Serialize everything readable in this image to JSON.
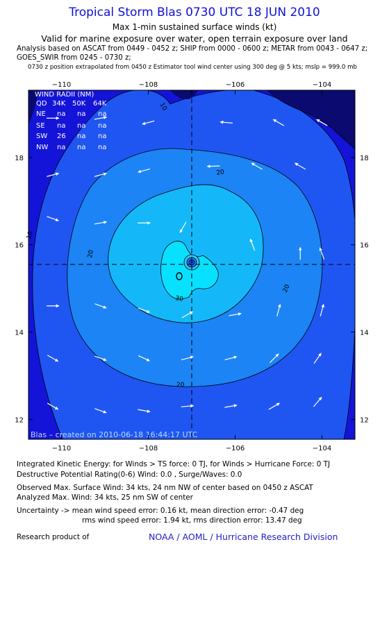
{
  "header": {
    "title": "Tropical Storm Blas 0730 UTC 18 JUN 2010",
    "subtitle": "Max 1-min sustained surface winds (kt)",
    "validity": "Valid for marine exposure over water, open terrain exposure over land",
    "analysis_line1": "Analysis based on  ASCAT from 0449 - 0452 z;  SHIP from 0000 - 0600 z;  METAR from 0043 - 0647 z;",
    "analysis_line2": "GOES_SWIR from 0245 - 0730 z;",
    "analysis_line3": "0730 z position extrapolated from 0450 z Estimator tool wind center using 300 deg @ 5 kts; mslp = 999.0 mb"
  },
  "wind_radii": {
    "title": "WIND RADII (NM)",
    "columns": [
      "QD",
      "34K",
      "50K",
      "64K"
    ],
    "rows": [
      [
        "NE",
        "na",
        "na",
        "na"
      ],
      [
        "SE",
        "na",
        "na",
        "na"
      ],
      [
        "SW",
        "26",
        "na",
        "na"
      ],
      [
        "NW",
        "na",
        "na",
        "na"
      ]
    ]
  },
  "credit": "Blas – created on 2010-06-18 16:44:17 UTC",
  "footer": {
    "ike": "Integrated Kinetic Energy:  for Winds > TS force: 0 TJ,  for Winds > Hurricane Force: 0 TJ",
    "dpr": "Destructive Potential Rating(0-6)   Wind: 0.0 , Surge/Waves: 0.0",
    "observed": "Observed Max. Surface Wind: 34 kts, 24 nm NW of center based on 0450 z ASCAT",
    "analyzed": "Analyzed Max. Wind: 34 kts, 25 nm SW of center",
    "uncertainty1": "Uncertainty -> mean wind speed error: 0.16 kt,   mean direction error:  -0.47 deg",
    "uncertainty2": "rms wind speed error: 1.94 kt,   rms direction error: 13.47 deg",
    "research": "Research product of",
    "org": "NOAA / AOML / Hurricane Research Division"
  },
  "colors": {
    "title": "#1010d8",
    "org": "#2020c8",
    "band_lt10": "#1414d8",
    "band_10_20": "#1f56f2",
    "band_20_25": "#1c84f4",
    "band_25_30": "#14b8f8",
    "band_30_35": "#08e0ff",
    "land": "#0a0a70"
  },
  "chart_data": {
    "type": "contour",
    "title": "Tropical Storm Blas 0730 UTC 18 JUN 2010",
    "variable": "Max 1-min sustained surface winds (kt)",
    "x_axis": {
      "ticks": [
        -110,
        -108,
        -106,
        -104
      ],
      "tick_labels": [
        "−110",
        "−108",
        "−106",
        "−104"
      ],
      "range": [
        -111,
        -103.8
      ]
    },
    "y_axis": {
      "ticks": [
        12,
        14,
        16,
        18
      ],
      "tick_labels": [
        "12",
        "14",
        "16",
        "18"
      ],
      "range": [
        11.6,
        19.6
      ]
    },
    "contour_levels": [
      10,
      20,
      30
    ],
    "contour_labels": [
      "10",
      "20",
      "30"
    ],
    "storm_center": {
      "lon": -107.0,
      "lat": 15.55
    },
    "max_wind_kt": 34,
    "wind_vectors": [
      {
        "lon": -110.2,
        "lat": 18.9,
        "dir": 90
      },
      {
        "lon": -109.1,
        "lat": 18.9,
        "dir": 80
      },
      {
        "lon": -108.0,
        "lat": 18.8,
        "dir": 255
      },
      {
        "lon": -106.2,
        "lat": 18.8,
        "dir": 275
      },
      {
        "lon": -105.0,
        "lat": 18.8,
        "dir": 300
      },
      {
        "lon": -104.0,
        "lat": 18.8,
        "dir": 300
      },
      {
        "lon": -110.2,
        "lat": 17.6,
        "dir": 75
      },
      {
        "lon": -109.1,
        "lat": 17.6,
        "dir": 75
      },
      {
        "lon": -108.1,
        "lat": 17.7,
        "dir": 255
      },
      {
        "lon": -106.5,
        "lat": 17.8,
        "dir": 268
      },
      {
        "lon": -105.5,
        "lat": 17.8,
        "dir": 300
      },
      {
        "lon": -104.5,
        "lat": 17.8,
        "dir": 300
      },
      {
        "lon": -110.2,
        "lat": 16.6,
        "dir": 110
      },
      {
        "lon": -109.1,
        "lat": 16.5,
        "dir": 80
      },
      {
        "lon": -108.1,
        "lat": 16.5,
        "dir": 90
      },
      {
        "lon": -107.2,
        "lat": 16.4,
        "dir": 210
      },
      {
        "lon": -105.6,
        "lat": 16.0,
        "dir": 340
      },
      {
        "lon": -104.5,
        "lat": 15.8,
        "dir": 0
      },
      {
        "lon": -104.0,
        "lat": 15.8,
        "dir": 340
      },
      {
        "lon": -110.2,
        "lat": 14.6,
        "dir": 90
      },
      {
        "lon": -109.1,
        "lat": 14.6,
        "dir": 110
      },
      {
        "lon": -108.1,
        "lat": 14.5,
        "dir": 110
      },
      {
        "lon": -107.1,
        "lat": 14.4,
        "dir": 60
      },
      {
        "lon": -106.0,
        "lat": 14.4,
        "dir": 80
      },
      {
        "lon": -105.0,
        "lat": 14.5,
        "dir": 15
      },
      {
        "lon": -104.0,
        "lat": 14.5,
        "dir": 15
      },
      {
        "lon": -110.2,
        "lat": 13.4,
        "dir": 120
      },
      {
        "lon": -109.1,
        "lat": 13.4,
        "dir": 110
      },
      {
        "lon": -108.1,
        "lat": 13.4,
        "dir": 115
      },
      {
        "lon": -107.1,
        "lat": 13.4,
        "dir": 75
      },
      {
        "lon": -106.1,
        "lat": 13.4,
        "dir": 75
      },
      {
        "lon": -105.1,
        "lat": 13.4,
        "dir": 45
      },
      {
        "lon": -104.1,
        "lat": 13.4,
        "dir": 35
      },
      {
        "lon": -110.2,
        "lat": 12.3,
        "dir": 120
      },
      {
        "lon": -109.1,
        "lat": 12.2,
        "dir": 110
      },
      {
        "lon": -108.1,
        "lat": 12.2,
        "dir": 100
      },
      {
        "lon": -107.1,
        "lat": 12.3,
        "dir": 85
      },
      {
        "lon": -106.1,
        "lat": 12.3,
        "dir": 80
      },
      {
        "lon": -105.1,
        "lat": 12.3,
        "dir": 60
      },
      {
        "lon": -104.1,
        "lat": 12.4,
        "dir": 40
      }
    ]
  }
}
